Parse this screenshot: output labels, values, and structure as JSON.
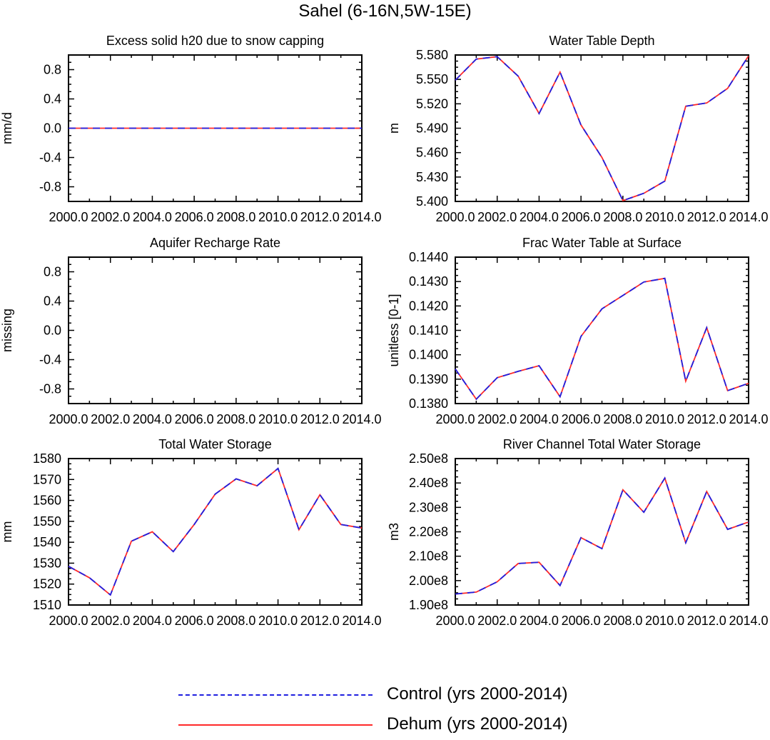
{
  "figure": {
    "title": "Sahel (6-16N,5W-15E)"
  },
  "colors": {
    "control": "#1f1fe0",
    "dehum": "#ff2a2a"
  },
  "legend": {
    "items": [
      {
        "label": "Control (yrs 2000-2014)",
        "style": "dashed",
        "color": "#1f1fe0"
      },
      {
        "label": "Dehum (yrs 2000-2014)",
        "style": "solid",
        "color": "#ff2a2a"
      }
    ]
  },
  "chart_data": [
    {
      "type": "line",
      "title": "Excess solid h20 due to snow capping",
      "xlabel": "",
      "ylabel": "mm/d",
      "xlim": [
        2000,
        2014
      ],
      "ylim": [
        -1,
        1
      ],
      "xticks": [
        "2000.0",
        "2002.0",
        "2004.0",
        "2006.0",
        "2008.0",
        "2010.0",
        "2012.0",
        "2014.0"
      ],
      "yticks": [
        -0.8,
        -0.4,
        0.0,
        0.4,
        0.8
      ],
      "yticklabels": [
        "-0.8",
        "-0.4",
        "0.0",
        "0.4",
        "0.8"
      ],
      "x": [
        2000,
        2001,
        2002,
        2003,
        2004,
        2005,
        2006,
        2007,
        2008,
        2009,
        2010,
        2011,
        2012,
        2013,
        2014
      ],
      "series": [
        {
          "name": "Control (yrs 2000-2014)",
          "values": [
            0,
            0,
            0,
            0,
            0,
            0,
            0,
            0,
            0,
            0,
            0,
            0,
            0,
            0,
            0
          ]
        },
        {
          "name": "Dehum (yrs 2000-2014)",
          "values": [
            0,
            0,
            0,
            0,
            0,
            0,
            0,
            0,
            0,
            0,
            0,
            0,
            0,
            0,
            0
          ]
        }
      ]
    },
    {
      "type": "line",
      "title": "Water Table Depth",
      "xlabel": "",
      "ylabel": "m",
      "xlim": [
        2000,
        2014
      ],
      "ylim": [
        5.4,
        5.58
      ],
      "xticks": [
        "2000.0",
        "2002.0",
        "2004.0",
        "2006.0",
        "2008.0",
        "2010.0",
        "2012.0",
        "2014.0"
      ],
      "yticks": [
        5.4,
        5.43,
        5.46,
        5.49,
        5.52,
        5.55,
        5.58
      ],
      "yticklabels": [
        "5.400",
        "5.430",
        "5.460",
        "5.490",
        "5.520",
        "5.550",
        "5.580"
      ],
      "x": [
        2000,
        2001,
        2002,
        2003,
        2004,
        2005,
        2006,
        2007,
        2008,
        2009,
        2010,
        2011,
        2012,
        2013,
        2014
      ],
      "series": [
        {
          "name": "Control (yrs 2000-2014)",
          "values": [
            5.549,
            5.575,
            5.578,
            5.554,
            5.508,
            5.559,
            5.494,
            5.454,
            5.401,
            5.41,
            5.425,
            5.517,
            5.521,
            5.539,
            5.579
          ]
        },
        {
          "name": "Dehum (yrs 2000-2014)",
          "values": [
            5.549,
            5.575,
            5.578,
            5.554,
            5.508,
            5.559,
            5.494,
            5.454,
            5.401,
            5.41,
            5.425,
            5.517,
            5.521,
            5.539,
            5.579
          ]
        }
      ]
    },
    {
      "type": "line",
      "title": "Aquifer Recharge Rate",
      "xlabel": "",
      "ylabel": "missing",
      "xlim": [
        2000,
        2014
      ],
      "ylim": [
        -1,
        1
      ],
      "xticks": [
        "2000.0",
        "2002.0",
        "2004.0",
        "2006.0",
        "2008.0",
        "2010.0",
        "2012.0",
        "2014.0"
      ],
      "yticks": [
        -0.8,
        -0.4,
        0.0,
        0.4,
        0.8
      ],
      "yticklabels": [
        "-0.8",
        "-0.4",
        "0.0",
        "0.4",
        "0.8"
      ],
      "x": [],
      "series": []
    },
    {
      "type": "line",
      "title": "Frac Water Table at Surface",
      "xlabel": "",
      "ylabel": "unitless [0-1]",
      "xlim": [
        2000,
        2014
      ],
      "ylim": [
        0.138,
        0.144
      ],
      "xticks": [
        "2000.0",
        "2002.0",
        "2004.0",
        "2006.0",
        "2008.0",
        "2010.0",
        "2012.0",
        "2014.0"
      ],
      "yticks": [
        0.138,
        0.139,
        0.14,
        0.141,
        0.142,
        0.143,
        0.144
      ],
      "yticklabels": [
        "0.1380",
        "0.1390",
        "0.1400",
        "0.1410",
        "0.1420",
        "0.1430",
        "0.1440"
      ],
      "x": [
        2000,
        2001,
        2002,
        2003,
        2004,
        2005,
        2006,
        2007,
        2008,
        2009,
        2010,
        2011,
        2012,
        2013,
        2014
      ],
      "series": [
        {
          "name": "Control (yrs 2000-2014)",
          "values": [
            0.13942,
            0.13818,
            0.13906,
            0.13932,
            0.13955,
            0.13828,
            0.14075,
            0.14188,
            0.14243,
            0.14298,
            0.14313,
            0.13892,
            0.14111,
            0.13853,
            0.13883
          ]
        },
        {
          "name": "Dehum (yrs 2000-2014)",
          "values": [
            0.13942,
            0.13818,
            0.13906,
            0.13932,
            0.13955,
            0.13828,
            0.14075,
            0.14188,
            0.14243,
            0.14298,
            0.14313,
            0.13892,
            0.14111,
            0.13853,
            0.13883
          ]
        }
      ]
    },
    {
      "type": "line",
      "title": "Total Water Storage",
      "xlabel": "",
      "ylabel": "mm",
      "xlim": [
        2000,
        2014
      ],
      "ylim": [
        1510,
        1580
      ],
      "xticks": [
        "2000.0",
        "2002.0",
        "2004.0",
        "2006.0",
        "2008.0",
        "2010.0",
        "2012.0",
        "2014.0"
      ],
      "yticks": [
        1510,
        1520,
        1530,
        1540,
        1550,
        1560,
        1570,
        1580
      ],
      "yticklabels": [
        "1510",
        "1520",
        "1530",
        "1540",
        "1550",
        "1560",
        "1570",
        "1580"
      ],
      "x": [
        2000,
        2001,
        2002,
        2003,
        2004,
        2005,
        2006,
        2007,
        2008,
        2009,
        2010,
        2011,
        2012,
        2013,
        2014
      ],
      "series": [
        {
          "name": "Control (yrs 2000-2014)",
          "values": [
            1528.5,
            1523.0,
            1514.8,
            1540.5,
            1545.0,
            1535.5,
            1548.5,
            1563.0,
            1570.3,
            1567.0,
            1575.3,
            1546.0,
            1562.7,
            1548.5,
            1546.8
          ]
        },
        {
          "name": "Dehum (yrs 2000-2014)",
          "values": [
            1528.5,
            1523.0,
            1514.8,
            1540.5,
            1545.0,
            1535.5,
            1548.5,
            1563.0,
            1570.3,
            1567.0,
            1575.3,
            1546.0,
            1562.7,
            1548.5,
            1546.8
          ]
        }
      ]
    },
    {
      "type": "line",
      "title": "River Channel Total Water Storage",
      "xlabel": "",
      "ylabel": "m3",
      "xlim": [
        2000,
        2014
      ],
      "ylim": [
        190000000,
        250000000
      ],
      "xticks": [
        "2000.0",
        "2002.0",
        "2004.0",
        "2006.0",
        "2008.0",
        "2010.0",
        "2012.0",
        "2014.0"
      ],
      "yticks": [
        190000000,
        200000000,
        210000000,
        220000000,
        230000000,
        240000000,
        250000000
      ],
      "yticklabels": [
        "1.90e8",
        "2.00e8",
        "2.10e8",
        "2.20e8",
        "2.30e8",
        "2.40e8",
        "2.50e8"
      ],
      "x": [
        2000,
        2001,
        2002,
        2003,
        2004,
        2005,
        2006,
        2007,
        2008,
        2009,
        2010,
        2011,
        2012,
        2013,
        2014
      ],
      "series": [
        {
          "name": "Control (yrs 2000-2014)",
          "values": [
            194500000,
            195300000,
            199500000,
            207000000,
            207500000,
            198000000,
            217600000,
            213100000,
            237200000,
            228000000,
            242000000,
            215500000,
            236500000,
            221000000,
            224000000
          ]
        },
        {
          "name": "Dehum (yrs 2000-2014)",
          "values": [
            194500000,
            195300000,
            199500000,
            207000000,
            207500000,
            198000000,
            217600000,
            213100000,
            237200000,
            228000000,
            242000000,
            215500000,
            236500000,
            221000000,
            224000000
          ]
        }
      ]
    }
  ]
}
